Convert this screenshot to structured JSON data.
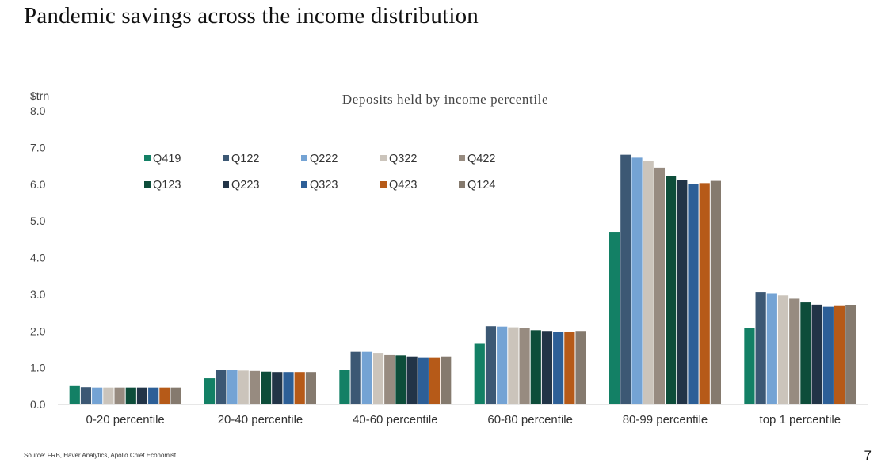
{
  "slide": {
    "title": "Pandemic savings across the income distribution",
    "source": "Source: FRB, Haver Analytics, Apollo Chief Economist",
    "page_number": "7"
  },
  "chart_data": {
    "type": "bar",
    "title": "Deposits held by income percentile",
    "ylabel": "$trn",
    "xlabel": "",
    "ylim": [
      0,
      8
    ],
    "yticks": [
      "0.0",
      "1.0",
      "2.0",
      "3.0",
      "4.0",
      "5.0",
      "6.0",
      "7.0",
      "8.0"
    ],
    "grid": false,
    "legend_position": "top-left",
    "categories": [
      "0-20 percentile",
      "20-40 percentile",
      "40-60 percentile",
      "60-80 percentile",
      "80-99 percentile",
      "top 1 percentile"
    ],
    "series": [
      {
        "name": "Q419",
        "color": "#138065",
        "values": [
          0.5,
          0.71,
          0.94,
          1.65,
          4.7,
          2.08
        ]
      },
      {
        "name": "Q122",
        "color": "#3c5874",
        "values": [
          0.47,
          0.93,
          1.43,
          2.13,
          6.8,
          3.06
        ]
      },
      {
        "name": "Q222",
        "color": "#74a3d4",
        "values": [
          0.46,
          0.93,
          1.43,
          2.12,
          6.72,
          3.03
        ]
      },
      {
        "name": "Q322",
        "color": "#cbc4bb",
        "values": [
          0.46,
          0.92,
          1.4,
          2.1,
          6.63,
          2.97
        ]
      },
      {
        "name": "Q422",
        "color": "#978b80",
        "values": [
          0.46,
          0.91,
          1.36,
          2.07,
          6.45,
          2.88
        ]
      },
      {
        "name": "Q123",
        "color": "#0d4d3a",
        "values": [
          0.46,
          0.89,
          1.33,
          2.02,
          6.23,
          2.78
        ]
      },
      {
        "name": "Q223",
        "color": "#223447",
        "values": [
          0.46,
          0.88,
          1.3,
          2.0,
          6.11,
          2.72
        ]
      },
      {
        "name": "Q323",
        "color": "#2d5f97",
        "values": [
          0.46,
          0.88,
          1.28,
          1.98,
          6.01,
          2.66
        ]
      },
      {
        "name": "Q423",
        "color": "#b65a18",
        "values": [
          0.46,
          0.88,
          1.28,
          1.98,
          6.03,
          2.68
        ]
      },
      {
        "name": "Q124",
        "color": "#857a6e",
        "values": [
          0.46,
          0.88,
          1.3,
          2.0,
          6.09,
          2.7
        ]
      }
    ]
  }
}
